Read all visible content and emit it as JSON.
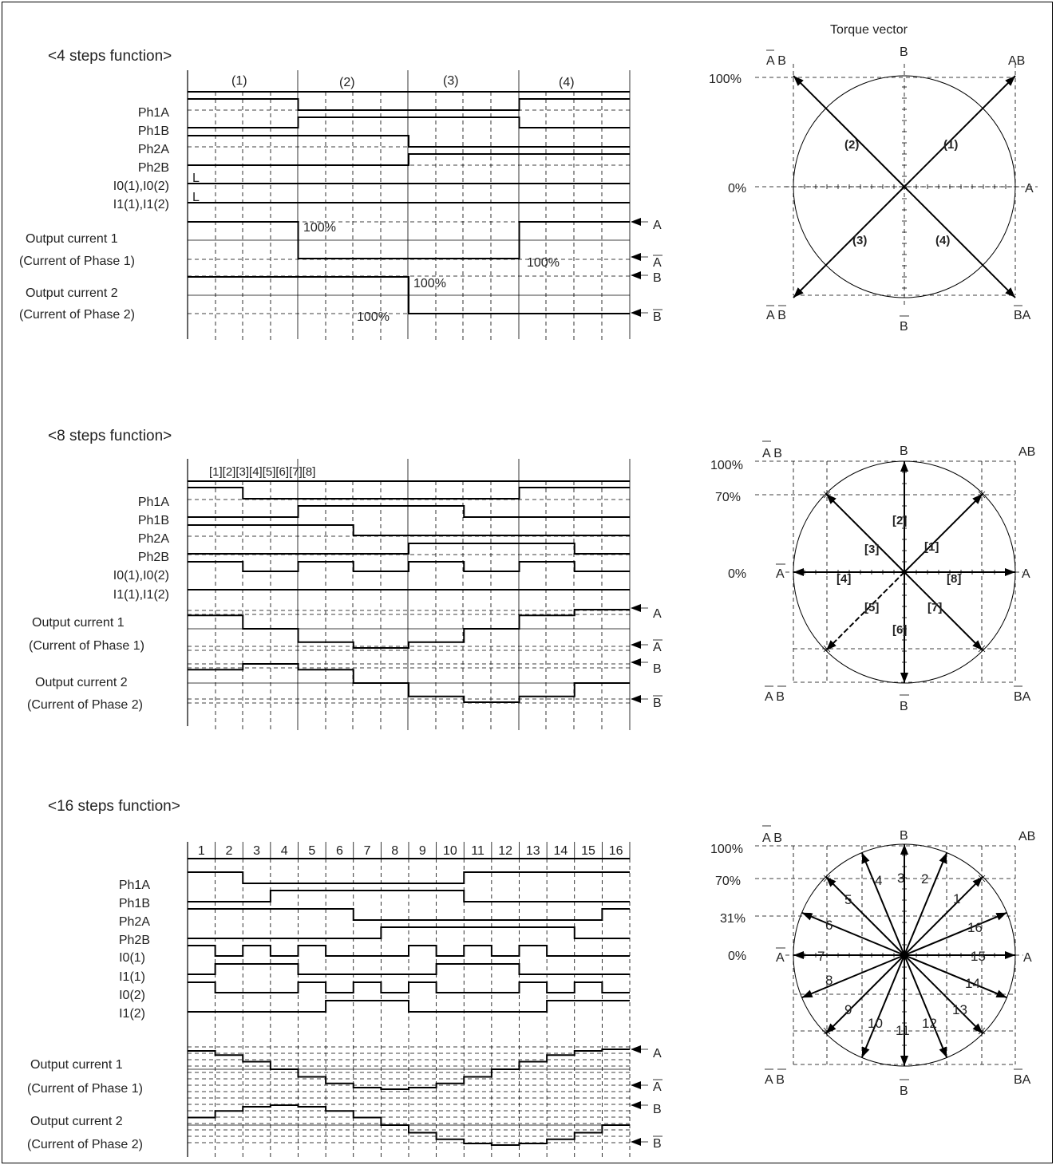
{
  "sections": [
    {
      "title": "<4 steps function>",
      "step_labels": [
        "(1)",
        "(2)",
        "(3)",
        "(4)"
      ],
      "signals": [
        "Ph1A",
        "Ph1B",
        "Ph2A",
        "Ph2B",
        "I0(1),I0(2)",
        "I1(1),I1(2)"
      ],
      "signal_marks": [
        "L",
        "L"
      ],
      "output1": [
        "Output current 1",
        "(Current of Phase 1)"
      ],
      "output2": [
        "Output current 2",
        "(Current of Phase 2)"
      ],
      "output_annotations": [
        "100%",
        "100%",
        "100%",
        "100%"
      ],
      "right_labels": [
        "A",
        "A",
        "B",
        "B"
      ],
      "vector_title": "Torque vector",
      "scale": [
        "100%",
        "0%"
      ],
      "corners": [
        "A B",
        "AB",
        "A B",
        "BA"
      ],
      "axis_labels": [
        "B",
        "A",
        "B"
      ],
      "vectors": [
        "(1)",
        "(2)",
        "(3)",
        "(4)"
      ]
    },
    {
      "title": "<8 steps function>",
      "step_labels": "[1][2][3][4][5][6][7][8]",
      "signals": [
        "Ph1A",
        "Ph1B",
        "Ph2A",
        "Ph2B",
        "I0(1),I0(2)",
        "I1(1),I1(2)"
      ],
      "output1": [
        "Output current 1",
        "(Current of Phase 1)"
      ],
      "output2": [
        "Output current 2",
        "(Current of Phase 2)"
      ],
      "right_labels": [
        "A",
        "A",
        "B",
        "B"
      ],
      "scale": [
        "100%",
        "70%",
        "0%"
      ],
      "corners": [
        "A B",
        "AB",
        "A B",
        "BA"
      ],
      "axis_labels": [
        "B",
        "A",
        "A",
        "B"
      ],
      "vectors": [
        "[1]",
        "[2]",
        "[3]",
        "[4]",
        "[5]",
        "[6]",
        "[7]",
        "[8]"
      ]
    },
    {
      "title": "<16 steps function>",
      "step_labels": [
        "1",
        "2",
        "3",
        "4",
        "5",
        "6",
        "7",
        "8",
        "9",
        "10",
        "11",
        "12",
        "13",
        "14",
        "15",
        "16"
      ],
      "signals": [
        "Ph1A",
        "Ph1B",
        "Ph2A",
        "Ph2B",
        "I0(1)",
        "I1(1)",
        "I0(2)",
        "I1(2)"
      ],
      "output1": [
        "Output current 1",
        "(Current of Phase 1)"
      ],
      "output2": [
        "Output current 2",
        "(Current of Phase 2)"
      ],
      "right_labels": [
        "A",
        "A",
        "B",
        "B"
      ],
      "scale": [
        "100%",
        "70%",
        "31%",
        "0%"
      ],
      "corners": [
        "A B",
        "AB",
        "A B",
        "BA"
      ],
      "axis_labels": [
        "B",
        "A",
        "A",
        "B"
      ],
      "vectors": [
        "1",
        "2",
        "3",
        "4",
        "5",
        "6",
        "7",
        "8",
        "9",
        "10",
        "11",
        "12",
        "13",
        "14",
        "15",
        "16"
      ]
    }
  ],
  "waveforms": {
    "s1": {
      "Ph1A": [
        1,
        1,
        0,
        0,
        0,
        0,
        1,
        1
      ],
      "Ph1B": [
        0,
        0,
        1,
        1,
        1,
        1,
        0,
        0
      ],
      "Ph2A": [
        1,
        1,
        1,
        1,
        0,
        0,
        0,
        0
      ],
      "Ph2B": [
        0,
        0,
        0,
        0,
        1,
        1,
        1,
        1
      ],
      "I0": [
        0,
        0,
        0,
        0,
        0,
        0,
        0,
        0
      ],
      "I1": [
        0,
        0,
        0,
        0,
        0,
        0,
        0,
        0
      ],
      "Out1": [
        1,
        1,
        -1,
        -1,
        -1,
        -1,
        1,
        1
      ],
      "Out2": [
        1,
        1,
        1,
        1,
        -1,
        -1,
        -1,
        -1
      ]
    },
    "s2": {
      "Ph1A": [
        1,
        0,
        0,
        0,
        0,
        0,
        1,
        1
      ],
      "Ph1B": [
        0,
        0,
        1,
        1,
        1,
        0,
        0,
        0
      ],
      "Ph2A": [
        1,
        1,
        1,
        0,
        0,
        0,
        0,
        0
      ],
      "Ph2B": [
        0,
        0,
        0,
        0,
        1,
        1,
        1,
        0
      ],
      "I0": [
        1,
        0,
        1,
        0,
        1,
        0,
        1,
        0
      ],
      "I1": [
        0,
        0,
        0,
        0,
        0,
        0,
        0,
        0
      ],
      "Out1": [
        0.7,
        0,
        -0.7,
        -1,
        -0.7,
        0,
        0.7,
        1
      ],
      "Out2": [
        0.7,
        1,
        0.7,
        0,
        -0.7,
        -1,
        -0.7,
        0
      ]
    },
    "s3": {
      "Ph1A": [
        1,
        1,
        0,
        0,
        0,
        0,
        0,
        0,
        0,
        0,
        1,
        1,
        1,
        1,
        1,
        1
      ],
      "Ph1B": [
        0,
        0,
        0,
        1,
        1,
        1,
        1,
        1,
        1,
        1,
        0,
        0,
        0,
        0,
        0,
        0
      ],
      "Ph2A": [
        1,
        1,
        1,
        1,
        1,
        1,
        0,
        0,
        0,
        0,
        0,
        0,
        0,
        0,
        0,
        1
      ],
      "Ph2B": [
        0,
        0,
        0,
        0,
        0,
        0,
        0,
        1,
        1,
        1,
        1,
        1,
        1,
        1,
        0,
        0
      ],
      "I0_1": [
        1,
        0,
        1,
        0,
        1,
        0,
        0,
        0,
        1,
        0,
        1,
        0,
        1,
        0,
        0,
        0
      ],
      "I1_1": [
        0,
        1,
        1,
        1,
        0,
        0,
        0,
        0,
        0,
        1,
        1,
        1,
        0,
        0,
        0,
        0
      ],
      "I0_2": [
        1,
        0,
        0,
        0,
        1,
        0,
        1,
        0,
        1,
        0,
        0,
        0,
        1,
        0,
        1,
        0
      ],
      "I1_2": [
        0,
        0,
        0,
        0,
        0,
        1,
        1,
        1,
        0,
        0,
        0,
        0,
        0,
        1,
        1,
        1
      ],
      "Out1": [
        0.92,
        0.71,
        0.38,
        0,
        -0.38,
        -0.71,
        -0.92,
        -1,
        -0.92,
        -0.71,
        -0.38,
        0,
        0.38,
        0.71,
        0.92,
        1
      ],
      "Out2": [
        0.38,
        0.71,
        0.92,
        1,
        0.92,
        0.71,
        0.38,
        0,
        -0.38,
        -0.71,
        -0.92,
        -1,
        -0.92,
        -0.71,
        -0.38,
        0
      ]
    }
  }
}
